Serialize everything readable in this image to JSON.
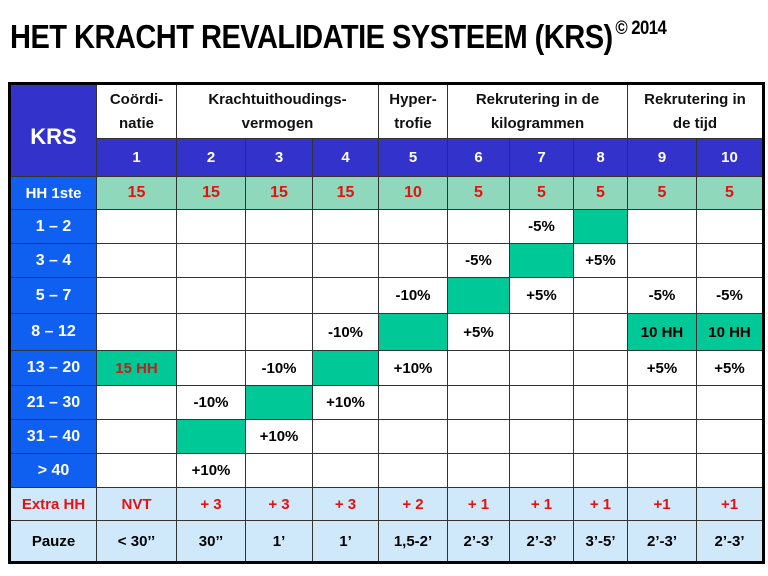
{
  "title": {
    "main": "HET KRACHT REVALIDATIE SYSTEEM (KRS)",
    "copyright": "© 2014"
  },
  "colors": {
    "header_blue": "#3333cc",
    "label_blue": "#0f5ff0",
    "hh_row_green": "#8fd8bb",
    "highlight_green": "#00c896",
    "bottom_rows_light_blue": "#cfe9fb",
    "red_text": "#e81010"
  },
  "table": {
    "corner_label": "KRS",
    "groups": [
      {
        "label_line1": "Coördi-",
        "label_line2": "natie",
        "span": 1
      },
      {
        "label_line1": "Krachtuithoudings-",
        "label_line2": "vermogen",
        "span": 3
      },
      {
        "label_line1": "Hyper-",
        "label_line2": "trofie",
        "span": 1
      },
      {
        "label_line1": "Rekrutering in de",
        "label_line2": "kilogrammen",
        "span": 3
      },
      {
        "label_line1": "Rekrutering in",
        "label_line2": "de tijd",
        "span": 2
      }
    ],
    "column_numbers": [
      "1",
      "2",
      "3",
      "4",
      "5",
      "6",
      "7",
      "8",
      "9",
      "10"
    ],
    "hh_first": {
      "label": "HH 1ste",
      "values": [
        "15",
        "15",
        "15",
        "15",
        "10",
        "5",
        "5",
        "5",
        "5",
        "5"
      ]
    },
    "rows": [
      {
        "label": "1 – 2",
        "cells": [
          "",
          "",
          "",
          "",
          "",
          "",
          "-5%",
          "",
          "",
          ""
        ],
        "green": [
          8
        ]
      },
      {
        "label": "3 – 4",
        "cells": [
          "",
          "",
          "",
          "",
          "",
          "-5%",
          "",
          "+5%",
          "",
          ""
        ],
        "green": [
          7
        ]
      },
      {
        "label": "5 – 7",
        "cells": [
          "",
          "",
          "",
          "",
          "-10%",
          "",
          "+5%",
          "",
          "-5%",
          "-5%"
        ],
        "green": [
          6
        ]
      },
      {
        "label": "8 – 12",
        "cells": [
          "",
          "",
          "",
          "-10%",
          "",
          "+5%",
          "",
          "",
          "10 HH",
          "10 HH"
        ],
        "green": [
          5,
          9,
          10
        ]
      },
      {
        "label": "13 – 20",
        "cells": [
          "15 HH",
          "",
          "-10%",
          "",
          "+10%",
          "",
          "",
          "",
          "+5%",
          "+5%"
        ],
        "green": [
          1,
          4
        ]
      },
      {
        "label": "21 – 30",
        "cells": [
          "",
          "-10%",
          "",
          "+10%",
          "",
          "",
          "",
          "",
          "",
          ""
        ],
        "green": [
          3
        ]
      },
      {
        "label": "31 – 40",
        "cells": [
          "",
          "",
          "+10%",
          "",
          "",
          "",
          "",
          "",
          "",
          ""
        ],
        "green": [
          2
        ]
      },
      {
        "label": "> 40",
        "cells": [
          "",
          "+10%",
          "",
          "",
          "",
          "",
          "",
          "",
          "",
          ""
        ],
        "green": []
      }
    ],
    "extra_hh": {
      "label": "Extra HH",
      "values": [
        "NVT",
        "+ 3",
        "+ 3",
        "+ 3",
        "+ 2",
        "+ 1",
        "+ 1",
        "+ 1",
        "+1",
        "+1"
      ]
    },
    "pauze": {
      "label": "Pauze",
      "values": [
        "< 30’’",
        "30’’",
        "1’",
        "1’",
        "1,5-2’",
        "2’-3’",
        "2’-3’",
        "3’-5’",
        "2’-3’",
        "2’-3’"
      ]
    }
  }
}
